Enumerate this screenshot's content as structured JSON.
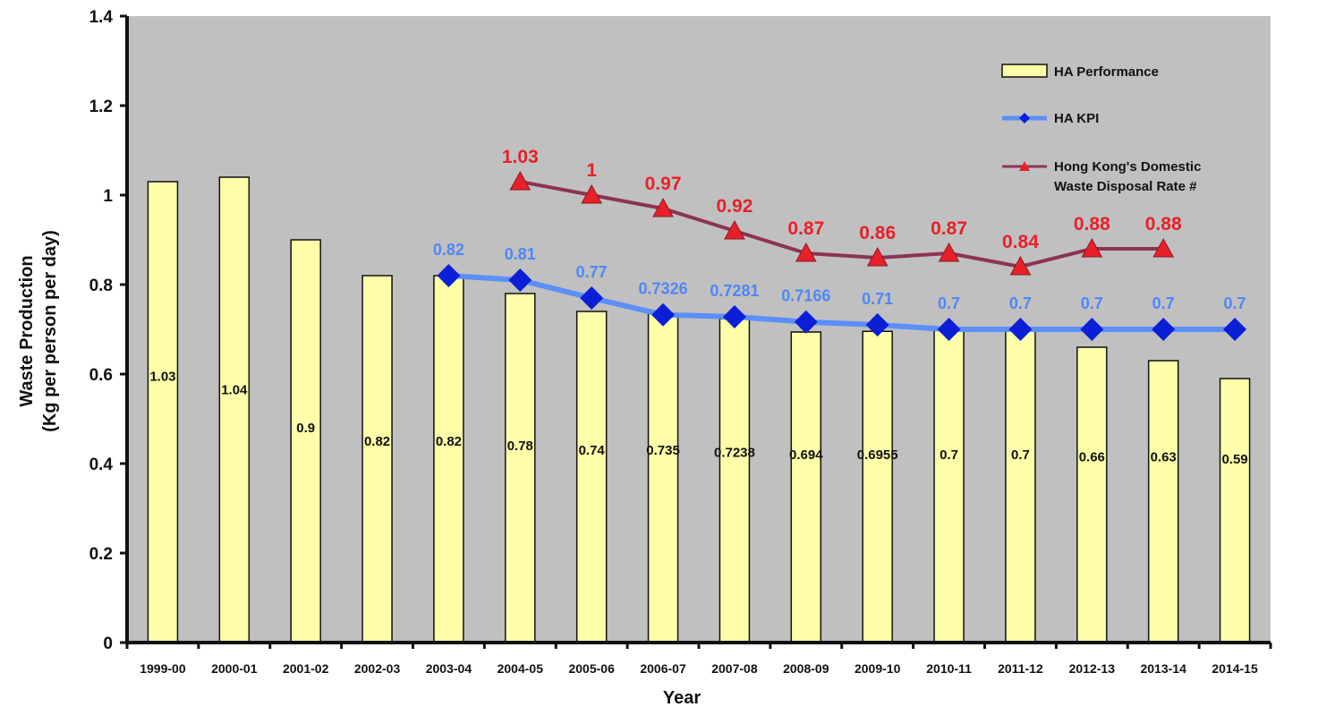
{
  "chart_data": {
    "type": "bar",
    "title": "",
    "xlabel": "Year",
    "ylabel_line1": "Waste Production",
    "ylabel_line2": "(Kg per person per day)",
    "ylim": [
      0,
      1.4
    ],
    "yticks": [
      "0",
      "0.2",
      "0.4",
      "0.6",
      "0.8",
      "1",
      "1.2",
      "1.4"
    ],
    "grid": false,
    "legend_position": "top-right",
    "categories": [
      "1999-00",
      "2000-01",
      "2001-02",
      "2002-03",
      "2003-04",
      "2004-05",
      "2005-06",
      "2006-07",
      "2007-08",
      "2008-09",
      "2009-10",
      "2010-11",
      "2011-12",
      "2012-13",
      "2013-14",
      "2014-15"
    ],
    "series": [
      {
        "name": "HA Performance",
        "type": "bar",
        "color": "#ffffaa",
        "values": [
          1.03,
          1.04,
          0.9,
          0.82,
          0.82,
          0.78,
          0.74,
          0.735,
          0.7238,
          0.694,
          0.6955,
          0.7,
          0.7,
          0.66,
          0.63,
          0.59
        ],
        "labels": [
          "1.03",
          "1.04",
          "0.9",
          "0.82",
          "0.82",
          "0.78",
          "0.74",
          "0.735",
          "0.7238",
          "0.694",
          "0.6955",
          "0.7",
          "0.7",
          "0.66",
          "0.63",
          "0.59"
        ]
      },
      {
        "name": "HA KPI",
        "type": "line",
        "marker": "diamond",
        "color": "#5b8ff9",
        "marker_color": "#0a1fd6",
        "label_color": "#4f86f7",
        "values": [
          null,
          null,
          null,
          null,
          0.82,
          0.81,
          0.77,
          0.7326,
          0.7281,
          0.7166,
          0.71,
          0.7,
          0.7,
          0.7,
          0.7,
          0.7
        ],
        "labels": [
          null,
          null,
          null,
          null,
          "0.82",
          "0.81",
          "0.77",
          "0.7326",
          "0.7281",
          "0.7166",
          "0.71",
          "0.7",
          "0.7",
          "0.7",
          "0.7",
          "0.7"
        ]
      },
      {
        "name_line1": "Hong Kong's Domestic",
        "name_line2": "Waste Disposal Rate #",
        "type": "line",
        "marker": "triangle",
        "color": "#8b3355",
        "marker_color": "#e8202a",
        "label_color": "#e8202a",
        "values": [
          null,
          null,
          null,
          null,
          null,
          1.03,
          1.0,
          0.97,
          0.92,
          0.87,
          0.86,
          0.87,
          0.84,
          0.88,
          0.88,
          null
        ],
        "labels": [
          null,
          null,
          null,
          null,
          null,
          "1.03",
          "1",
          "0.97",
          "0.92",
          "0.87",
          "0.86",
          "0.87",
          "0.84",
          "0.88",
          "0.88",
          null
        ]
      }
    ],
    "plot_background": "#c0c0c0"
  }
}
